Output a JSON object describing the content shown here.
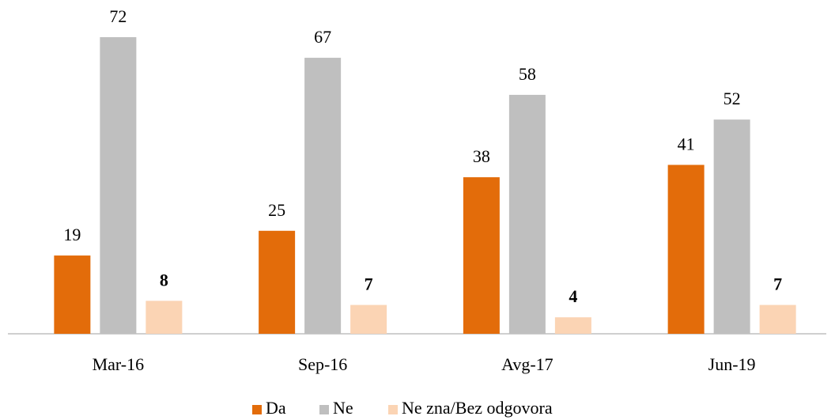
{
  "chart_data": {
    "type": "bar",
    "categories": [
      "Mar-16",
      "Sep-16",
      "Avg-17",
      "Jun-19"
    ],
    "series": [
      {
        "name": "Da",
        "color": "#e36c0a",
        "values": [
          19,
          25,
          38,
          41
        ]
      },
      {
        "name": "Ne",
        "color": "#bfbfbf",
        "values": [
          72,
          67,
          58,
          52
        ]
      },
      {
        "name": "Ne zna/Bez odgovora",
        "color": "#fbd4b4",
        "values": [
          8,
          7,
          4,
          7
        ]
      }
    ]
  }
}
